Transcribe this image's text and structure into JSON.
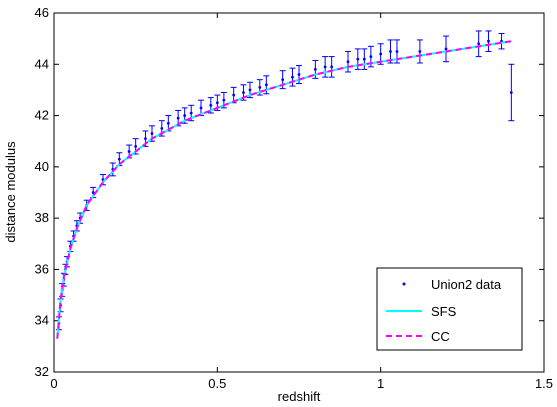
{
  "chart_data": {
    "type": "scatter",
    "title": "",
    "xlabel": "redshift",
    "ylabel": "distance modulus",
    "xlim": [
      0,
      1.5
    ],
    "ylim": [
      32,
      46
    ],
    "xticks": [
      "0",
      "0.5",
      "1",
      "1.5"
    ],
    "yticks": [
      "32",
      "34",
      "36",
      "38",
      "40",
      "42",
      "44",
      "46"
    ],
    "grid": false,
    "legend_position": "bottom-right",
    "series": [
      {
        "name": "Union2 data",
        "style": "points-with-errorbars",
        "color": "#0000ff",
        "x": [
          0.015,
          0.02,
          0.025,
          0.03,
          0.035,
          0.04,
          0.05,
          0.06,
          0.07,
          0.08,
          0.1,
          0.12,
          0.15,
          0.18,
          0.2,
          0.23,
          0.25,
          0.28,
          0.3,
          0.33,
          0.35,
          0.38,
          0.4,
          0.42,
          0.45,
          0.48,
          0.5,
          0.52,
          0.55,
          0.58,
          0.6,
          0.63,
          0.65,
          0.7,
          0.73,
          0.75,
          0.8,
          0.83,
          0.85,
          0.9,
          0.93,
          0.95,
          0.97,
          1.0,
          1.03,
          1.05,
          1.12,
          1.2,
          1.3,
          1.33,
          1.37,
          1.4
        ],
        "y": [
          33.9,
          34.6,
          35.2,
          35.6,
          36.0,
          36.3,
          36.9,
          37.3,
          37.7,
          38.0,
          38.5,
          39.0,
          39.5,
          39.9,
          40.3,
          40.6,
          40.8,
          41.1,
          41.3,
          41.5,
          41.7,
          41.9,
          42.0,
          42.1,
          42.3,
          42.4,
          42.5,
          42.6,
          42.8,
          42.9,
          43.0,
          43.1,
          43.2,
          43.4,
          43.5,
          43.6,
          43.8,
          43.9,
          43.9,
          44.1,
          44.2,
          44.2,
          44.3,
          44.4,
          44.5,
          44.5,
          44.5,
          44.6,
          44.8,
          44.9,
          44.9,
          42.9
        ],
        "yerr": [
          0.25,
          0.25,
          0.25,
          0.25,
          0.2,
          0.2,
          0.2,
          0.2,
          0.2,
          0.2,
          0.2,
          0.2,
          0.2,
          0.25,
          0.25,
          0.25,
          0.3,
          0.3,
          0.3,
          0.3,
          0.3,
          0.3,
          0.3,
          0.3,
          0.3,
          0.3,
          0.3,
          0.3,
          0.3,
          0.3,
          0.3,
          0.3,
          0.35,
          0.35,
          0.35,
          0.35,
          0.35,
          0.4,
          0.4,
          0.4,
          0.4,
          0.4,
          0.4,
          0.4,
          0.45,
          0.45,
          0.45,
          0.5,
          0.5,
          0.4,
          0.3,
          1.1
        ]
      },
      {
        "name": "SFS",
        "style": "line",
        "color": "#00ffff",
        "x": [
          0.01,
          0.02,
          0.03,
          0.05,
          0.07,
          0.1,
          0.15,
          0.2,
          0.3,
          0.4,
          0.5,
          0.6,
          0.7,
          0.8,
          0.9,
          1.0,
          1.1,
          1.2,
          1.3,
          1.4
        ],
        "y": [
          33.3,
          34.8,
          35.7,
          36.8,
          37.6,
          38.5,
          39.4,
          40.1,
          41.1,
          41.8,
          42.3,
          42.8,
          43.2,
          43.6,
          43.9,
          44.1,
          44.3,
          44.5,
          44.7,
          44.9
        ]
      },
      {
        "name": "CC",
        "style": "dashed-line",
        "color": "#ff00ff",
        "x": [
          0.01,
          0.02,
          0.03,
          0.05,
          0.07,
          0.1,
          0.15,
          0.2,
          0.3,
          0.4,
          0.5,
          0.6,
          0.7,
          0.8,
          0.9,
          1.0,
          1.1,
          1.2,
          1.3,
          1.4
        ],
        "y": [
          33.3,
          34.8,
          35.7,
          36.8,
          37.6,
          38.5,
          39.4,
          40.1,
          41.1,
          41.8,
          42.3,
          42.8,
          43.2,
          43.6,
          43.9,
          44.1,
          44.3,
          44.5,
          44.7,
          44.9
        ]
      }
    ]
  }
}
